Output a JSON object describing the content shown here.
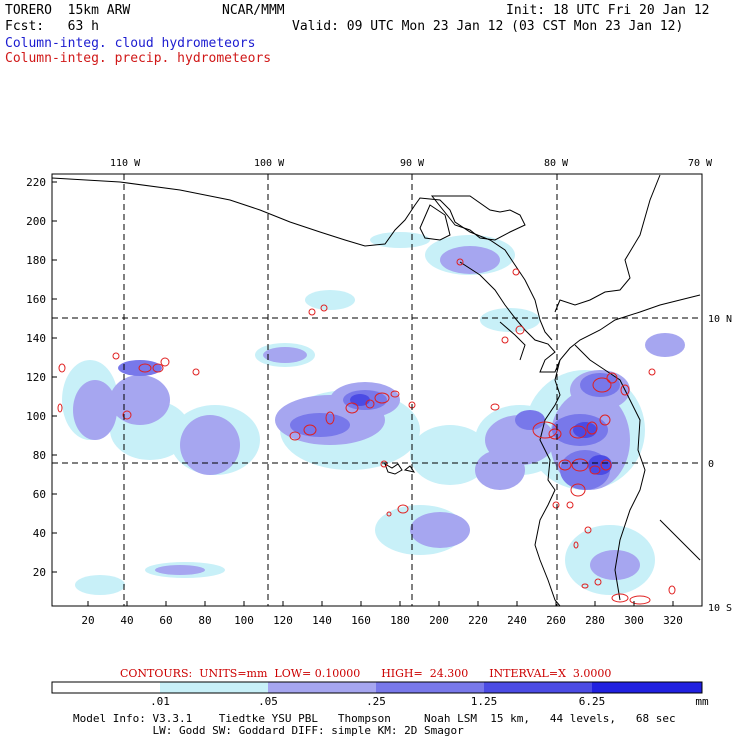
{
  "header": {
    "model": "TORERO  15km ARW",
    "org": "NCAR/MMM",
    "init": "Init: 18 UTC Fri 20 Jan 12",
    "fcst": "Fcst:   63 h",
    "valid": "Valid: 09 UTC Mon 23 Jan 12 (03 CST Mon 23 Jan 12)",
    "field_cloud": "Column-integ. cloud hydrometeors",
    "field_precip": "Column-integ. precip. hydrometeors"
  },
  "map": {
    "lon_labels": [
      "110 W",
      "100 W",
      "90 W",
      "80 W",
      "70 W"
    ],
    "lat_labels": [
      "10 N",
      "0",
      "10 S"
    ],
    "y_ticks": [
      "220",
      "200",
      "180",
      "160",
      "140",
      "120",
      "100",
      "80",
      "60",
      "40",
      "20"
    ],
    "x_ticks": [
      "20",
      "40",
      "60",
      "80",
      "100",
      "120",
      "140",
      "160",
      "180",
      "200",
      "220",
      "240",
      "260",
      "280",
      "300",
      "320"
    ],
    "colors": {
      "shade1": "#c8f0f8",
      "shade2": "#a6a6f0",
      "shade3": "#7878ea",
      "shade4": "#4b4be4",
      "shade5": "#2020e0",
      "contour": "#e02020",
      "coast": "#000000"
    }
  },
  "contours": {
    "text": "CONTOURS:  UNITS=mm  LOW= 0.10000      HIGH=  24.300      INTERVAL=X  3.0000"
  },
  "colorbar": {
    "labels": [
      ".01",
      ".05",
      ".25",
      "1.25",
      "6.25"
    ],
    "unit": "mm"
  },
  "footer": {
    "line1": "Model Info: V3.3.1    Tiedtke YSU PBL   Thompson     Noah LSM  15 km,   44 levels,   68 sec",
    "line2": "            LW: Godd SW: Goddard DIFF: simple KM: 2D Smagor"
  }
}
